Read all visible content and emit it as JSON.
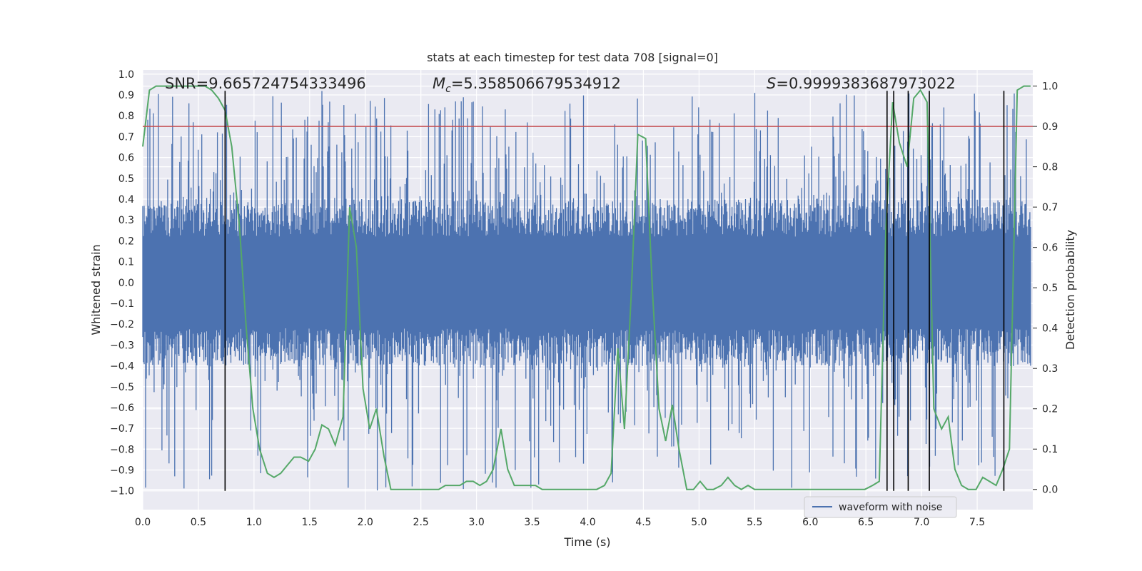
{
  "chart_data": {
    "type": "line",
    "title": "stats at each timestep for test data 708 [signal=0]",
    "xlabel": "Time (s)",
    "ylabel_left": "Whitened strain",
    "ylabel_right": "Detection probability",
    "xlim": [
      0.0,
      8.0
    ],
    "ylim_left": [
      -1.09,
      1.02
    ],
    "ylim_right": [
      -0.05,
      1.04
    ],
    "x_ticks": [
      "0.0",
      "0.5",
      "1.0",
      "1.5",
      "2.0",
      "2.5",
      "3.0",
      "3.5",
      "4.0",
      "4.5",
      "5.0",
      "5.5",
      "6.0",
      "6.5",
      "7.0",
      "7.5"
    ],
    "y_left_ticks": [
      "1.0",
      "0.9",
      "0.8",
      "0.7",
      "0.6",
      "0.5",
      "0.4",
      "0.3",
      "0.2",
      "0.1",
      "0.0",
      "−0.1",
      "−0.2",
      "−0.3",
      "−0.4",
      "−0.5",
      "−0.6",
      "−0.7",
      "−0.8",
      "−0.9",
      "−1.0"
    ],
    "y_right_ticks": [
      "1.0",
      "0.9",
      "0.8",
      "0.7",
      "0.6",
      "0.5",
      "0.4",
      "0.3",
      "0.2",
      "0.1",
      "0.0"
    ],
    "grid": true,
    "annotations": {
      "snr": "SNR=9.665724754333496",
      "mc_symbol": "M",
      "mc_subscript": "c",
      "mc_value": "=5.358506679534912",
      "s_symbol": "S",
      "s_value": "=0.9999383687973022"
    },
    "legend": {
      "label": "waveform with noise",
      "placement": "lower-right"
    },
    "threshold": 0.9,
    "vlines_x": [
      0.74,
      6.69,
      6.75,
      6.88,
      7.07,
      7.74
    ],
    "waveform": {
      "name": "waveform with noise",
      "color": "#4c72b0",
      "x_range": [
        0.0,
        7.98
      ],
      "band": [
        -0.4,
        0.4
      ],
      "peak_range": [
        -1.0,
        0.92
      ]
    },
    "probability": {
      "color": "#55a868",
      "x": [
        0.0,
        0.06,
        0.12,
        0.18,
        0.25,
        0.31,
        0.37,
        0.43,
        0.5,
        0.56,
        0.62,
        0.68,
        0.74,
        0.8,
        0.87,
        0.93,
        0.99,
        1.05,
        1.12,
        1.18,
        1.24,
        1.3,
        1.36,
        1.42,
        1.49,
        1.55,
        1.61,
        1.67,
        1.73,
        1.8,
        1.86,
        1.92,
        1.98,
        2.04,
        2.1,
        2.17,
        2.23,
        2.29,
        2.35,
        2.41,
        2.47,
        2.54,
        2.6,
        2.66,
        2.72,
        2.78,
        2.85,
        2.91,
        2.97,
        3.03,
        3.09,
        3.15,
        3.22,
        3.28,
        3.34,
        3.4,
        3.46,
        3.53,
        3.59,
        3.65,
        3.71,
        3.77,
        3.84,
        3.9,
        3.96,
        4.02,
        4.08,
        4.15,
        4.21,
        4.27,
        4.33,
        4.39,
        4.45,
        4.52,
        4.58,
        4.64,
        4.7,
        4.76,
        4.82,
        4.89,
        4.95,
        5.01,
        5.07,
        5.13,
        5.2,
        5.26,
        5.32,
        5.38,
        5.44,
        5.5,
        5.57,
        5.63,
        5.69,
        5.75,
        5.81,
        5.88,
        5.94,
        6.0,
        6.06,
        6.12,
        6.18,
        6.25,
        6.31,
        6.37,
        6.43,
        6.49,
        6.56,
        6.62,
        6.68,
        6.74,
        6.8,
        6.87,
        6.93,
        6.99,
        7.05,
        7.11,
        7.18,
        7.24,
        7.3,
        7.36,
        7.42,
        7.49,
        7.55,
        7.61,
        7.67,
        7.73,
        7.79,
        7.86,
        7.92,
        7.98
      ],
      "y": [
        0.85,
        0.99,
        1.0,
        1.0,
        1.0,
        1.0,
        1.0,
        1.0,
        1.0,
        1.0,
        0.99,
        0.97,
        0.94,
        0.85,
        0.65,
        0.4,
        0.2,
        0.1,
        0.04,
        0.03,
        0.04,
        0.06,
        0.08,
        0.08,
        0.07,
        0.1,
        0.16,
        0.15,
        0.11,
        0.18,
        0.7,
        0.6,
        0.25,
        0.15,
        0.2,
        0.08,
        0.0,
        0.0,
        0.0,
        0.0,
        0.0,
        0.0,
        0.0,
        0.0,
        0.01,
        0.01,
        0.01,
        0.02,
        0.02,
        0.01,
        0.02,
        0.05,
        0.15,
        0.05,
        0.01,
        0.01,
        0.01,
        0.01,
        0.0,
        0.0,
        0.0,
        0.0,
        0.0,
        0.0,
        0.0,
        0.0,
        0.0,
        0.01,
        0.04,
        0.35,
        0.15,
        0.48,
        0.88,
        0.87,
        0.5,
        0.2,
        0.12,
        0.21,
        0.1,
        0.0,
        0.0,
        0.02,
        0.0,
        0.0,
        0.01,
        0.03,
        0.01,
        0.0,
        0.01,
        0.0,
        0.0,
        0.0,
        0.0,
        0.0,
        0.0,
        0.0,
        0.0,
        0.0,
        0.0,
        0.0,
        0.0,
        0.0,
        0.0,
        0.0,
        0.0,
        0.0,
        0.01,
        0.02,
        0.65,
        0.96,
        0.86,
        0.8,
        0.97,
        0.99,
        0.96,
        0.2,
        0.15,
        0.18,
        0.05,
        0.01,
        0.0,
        0.0,
        0.03,
        0.02,
        0.01,
        0.05,
        0.1,
        0.99,
        1.0,
        1.0
      ]
    }
  }
}
